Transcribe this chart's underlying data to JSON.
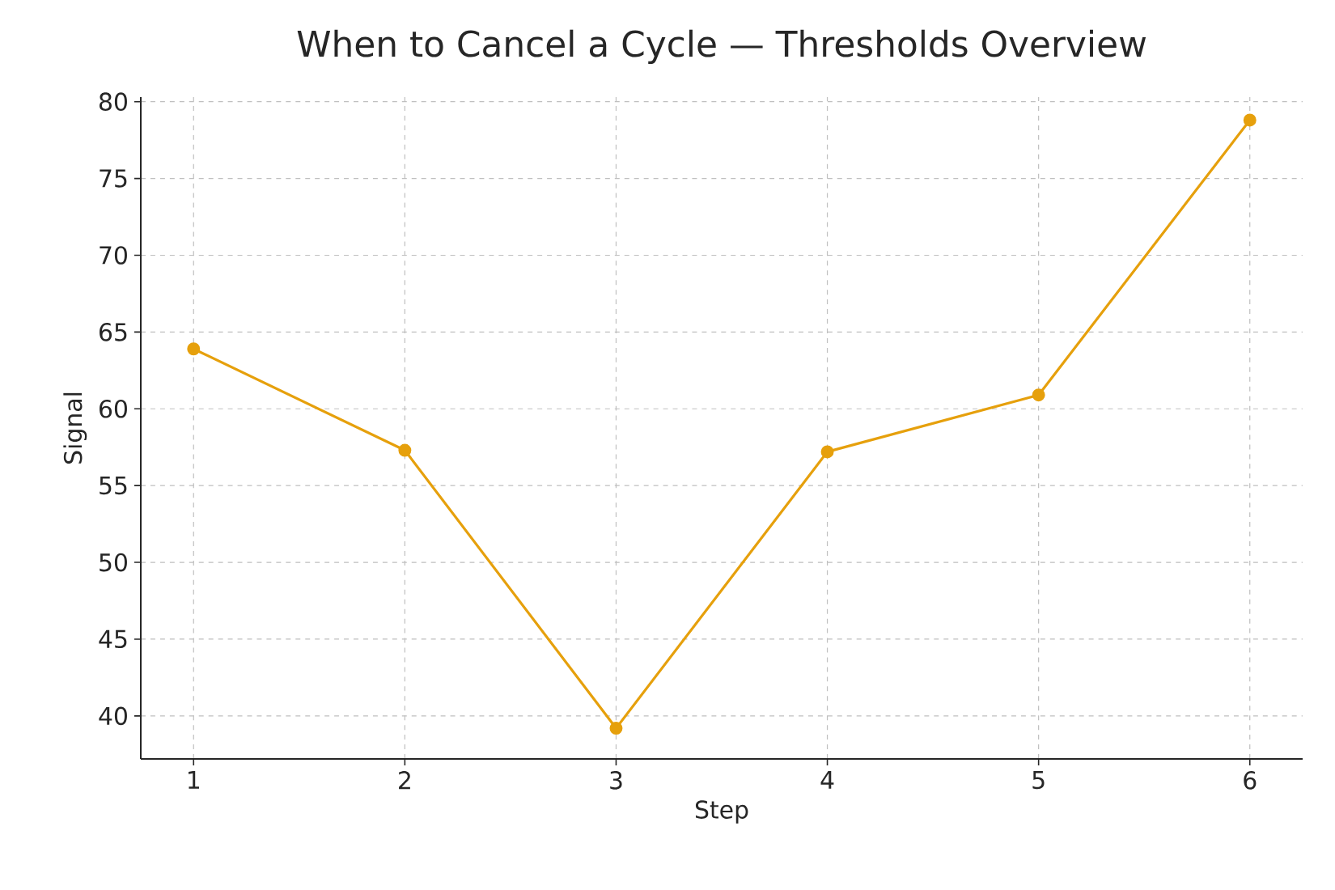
{
  "chart_data": {
    "type": "line",
    "title": "When to Cancel a Cycle — Thresholds Overview",
    "xlabel": "Step",
    "ylabel": "Signal",
    "x": [
      1,
      2,
      3,
      4,
      5,
      6
    ],
    "series": [
      {
        "color": "#e6a00c",
        "values": [
          63.9,
          57.3,
          39.2,
          57.2,
          60.9,
          78.8
        ]
      }
    ],
    "xlim": [
      0.75,
      6.25
    ],
    "ylim": [
      37.2,
      80.3
    ],
    "xticks": [
      1,
      2,
      3,
      4,
      5,
      6
    ],
    "yticks": [
      40,
      45,
      50,
      55,
      60,
      65,
      70,
      75,
      80
    ],
    "grid": true,
    "marker": "circle",
    "line_style": "solid"
  }
}
